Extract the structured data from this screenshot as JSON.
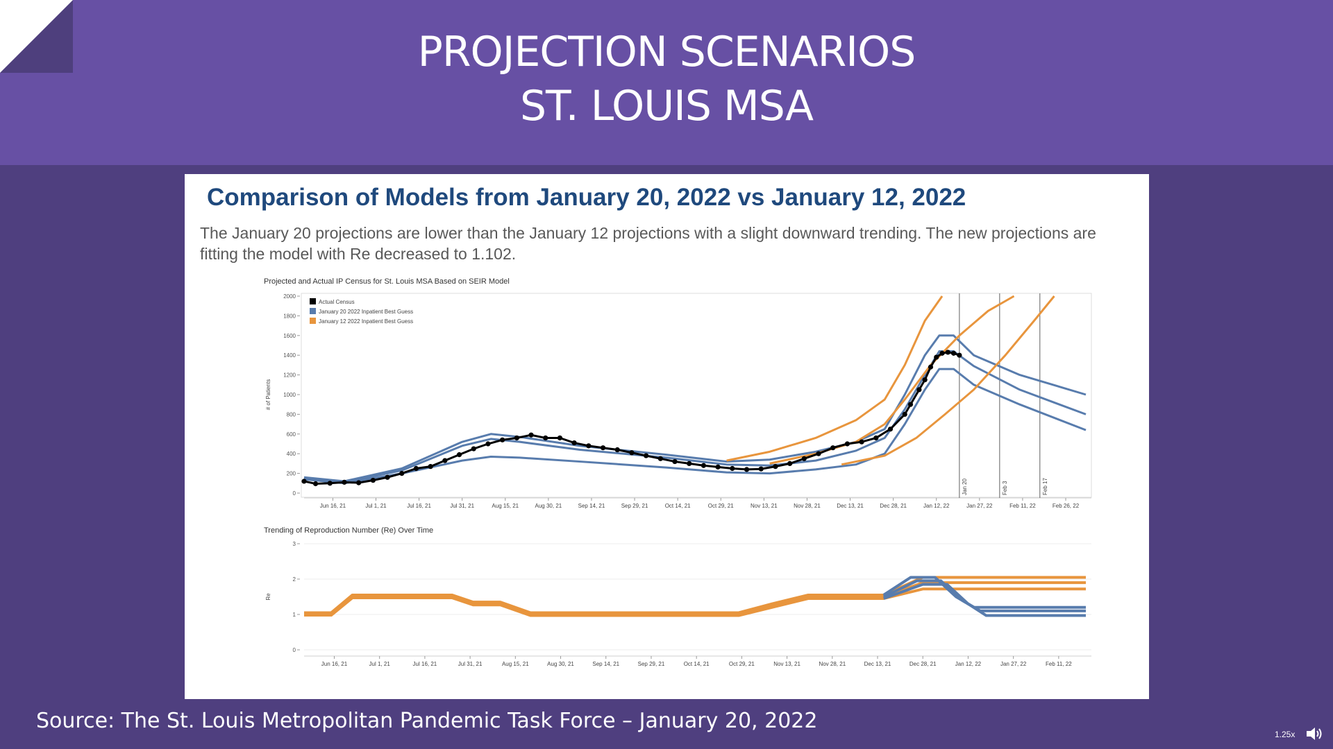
{
  "slide": {
    "title_line1": "PROJECTION SCENARIOS",
    "title_line2": "ST. LOUIS MSA",
    "heading": "Comparison of Models from January 20, 2022 vs January 12, 2022",
    "description": "The January 20 projections are lower than the January 12 projections with a slight downward trending. The new projections are fitting the model with Re decreased to 1.102.",
    "source": "Source: The St. Louis Metropolitan Pandemic Task Force – January 20, 2022",
    "colors": {
      "header": "#6750a4",
      "background": "#4f3f7f",
      "heading": "#1f497d"
    }
  },
  "player": {
    "speed": "1.25x",
    "speaker_icon": "speaker-icon"
  },
  "chart_data": [
    {
      "type": "line",
      "title": "Projected and Actual IP Census for St. Louis MSA Based on SEIR Model",
      "ylabel": "# of Patients",
      "xlabel": "",
      "x_ticks": [
        "Jun 16, 21",
        "Jul 1, 21",
        "Jul 16, 21",
        "Jul 31, 21",
        "Aug 15, 21",
        "Aug 30, 21",
        "Sep 14, 21",
        "Sep 29, 21",
        "Oct 14, 21",
        "Oct 29, 21",
        "Nov 13, 21",
        "Nov 28, 21",
        "Dec 13, 21",
        "Dec 28, 21",
        "Jan 12, 22",
        "Jan 27, 22",
        "Feb 11, 22",
        "Feb 26, 22"
      ],
      "x_range": [
        "2021-06-06",
        "2022-03-05"
      ],
      "y_ticks": [
        0,
        200,
        400,
        600,
        800,
        1000,
        1200,
        1400,
        1600,
        1800,
        2000
      ],
      "ylim": [
        0,
        2000
      ],
      "grid": false,
      "legend_position": "top-left",
      "legend": [
        {
          "name": "Actual Census",
          "color": "#000000"
        },
        {
          "name": "January 20 2022 Inpatient Best Guess",
          "color": "#587cad"
        },
        {
          "name": "January 12 2022 Inpatient Best Guess",
          "color": "#e8953d"
        }
      ],
      "reference_lines": [
        {
          "label": "Jan 20",
          "x": "2022-01-20"
        },
        {
          "label": "Feb 3",
          "x": "2022-02-03"
        },
        {
          "label": "Feb 17",
          "x": "2022-02-17"
        }
      ],
      "series": [
        {
          "name": "Actual Census",
          "color": "#000000",
          "style": "dots",
          "x": [
            "2021-06-06",
            "2021-06-10",
            "2021-06-15",
            "2021-06-20",
            "2021-06-25",
            "2021-06-30",
            "2021-07-05",
            "2021-07-10",
            "2021-07-15",
            "2021-07-20",
            "2021-07-25",
            "2021-07-30",
            "2021-08-04",
            "2021-08-09",
            "2021-08-14",
            "2021-08-19",
            "2021-08-24",
            "2021-08-29",
            "2021-09-03",
            "2021-09-08",
            "2021-09-13",
            "2021-09-18",
            "2021-09-23",
            "2021-09-28",
            "2021-10-03",
            "2021-10-08",
            "2021-10-13",
            "2021-10-18",
            "2021-10-23",
            "2021-10-28",
            "2021-11-02",
            "2021-11-07",
            "2021-11-12",
            "2021-11-17",
            "2021-11-22",
            "2021-11-27",
            "2021-12-02",
            "2021-12-07",
            "2021-12-12",
            "2021-12-17",
            "2021-12-22",
            "2021-12-27",
            "2022-01-01",
            "2022-01-03",
            "2022-01-06",
            "2022-01-08",
            "2022-01-10",
            "2022-01-12",
            "2022-01-14",
            "2022-01-16",
            "2022-01-18",
            "2022-01-20"
          ],
          "values": [
            120,
            95,
            100,
            110,
            105,
            130,
            160,
            200,
            250,
            270,
            330,
            390,
            450,
            500,
            540,
            560,
            590,
            560,
            560,
            510,
            480,
            460,
            440,
            410,
            380,
            350,
            320,
            300,
            280,
            265,
            250,
            240,
            245,
            270,
            300,
            350,
            400,
            460,
            500,
            520,
            560,
            650,
            800,
            900,
            1050,
            1150,
            1280,
            1380,
            1420,
            1430,
            1420,
            1400
          ]
        },
        {
          "name": "January 20 2022 Inpatient Best Guess",
          "color": "#587cad",
          "band": "upper",
          "x": [
            "2021-06-06",
            "2021-06-20",
            "2021-07-10",
            "2021-07-31",
            "2021-08-10",
            "2021-08-20",
            "2021-09-10",
            "2021-10-10",
            "2021-10-31",
            "2021-11-15",
            "2021-12-01",
            "2021-12-15",
            "2021-12-25",
            "2022-01-01",
            "2022-01-08",
            "2022-01-13",
            "2022-01-18",
            "2022-01-25",
            "2022-02-10",
            "2022-03-05"
          ],
          "values": [
            160,
            120,
            250,
            520,
            600,
            570,
            480,
            390,
            320,
            340,
            420,
            520,
            650,
            1000,
            1400,
            1600,
            1600,
            1400,
            1200,
            1000
          ]
        },
        {
          "name": "January 20 2022 Inpatient Best Guess",
          "color": "#587cad",
          "band": "middle",
          "x": [
            "2021-06-06",
            "2021-06-20",
            "2021-07-10",
            "2021-07-31",
            "2021-08-10",
            "2021-08-20",
            "2021-09-10",
            "2021-10-10",
            "2021-10-31",
            "2021-11-15",
            "2021-12-01",
            "2021-12-15",
            "2021-12-25",
            "2022-01-01",
            "2022-01-08",
            "2022-01-13",
            "2022-01-18",
            "2022-01-25",
            "2022-02-10",
            "2022-03-05"
          ],
          "values": [
            150,
            110,
            230,
            480,
            550,
            520,
            440,
            360,
            290,
            280,
            330,
            430,
            560,
            850,
            1200,
            1440,
            1440,
            1290,
            1050,
            800
          ]
        },
        {
          "name": "January 20 2022 Inpatient Best Guess",
          "color": "#587cad",
          "band": "lower",
          "x": [
            "2021-06-06",
            "2021-06-20",
            "2021-07-10",
            "2021-07-31",
            "2021-08-10",
            "2021-08-20",
            "2021-09-10",
            "2021-10-10",
            "2021-10-31",
            "2021-11-15",
            "2021-12-01",
            "2021-12-15",
            "2021-12-25",
            "2022-01-01",
            "2022-01-08",
            "2022-01-13",
            "2022-01-18",
            "2022-01-25",
            "2022-02-10",
            "2022-03-05"
          ],
          "values": [
            140,
            100,
            200,
            330,
            370,
            360,
            320,
            260,
            210,
            200,
            240,
            290,
            400,
            700,
            1050,
            1260,
            1260,
            1100,
            900,
            640
          ]
        },
        {
          "name": "January 12 2022 Inpatient Best Guess",
          "color": "#e8953d",
          "band": "upper",
          "x": [
            "2021-10-31",
            "2021-11-15",
            "2021-12-01",
            "2021-12-15",
            "2021-12-25",
            "2022-01-01",
            "2022-01-08",
            "2022-01-14"
          ],
          "values": [
            330,
            420,
            560,
            740,
            950,
            1300,
            1750,
            2000
          ]
        },
        {
          "name": "January 12 2022 Inpatient Best Guess",
          "color": "#e8953d",
          "band": "middle",
          "x": [
            "2021-11-15",
            "2021-12-01",
            "2021-12-15",
            "2021-12-25",
            "2022-01-01",
            "2022-01-10",
            "2022-01-20",
            "2022-01-30",
            "2022-02-08"
          ],
          "values": [
            300,
            400,
            520,
            700,
            950,
            1300,
            1600,
            1850,
            2000
          ]
        },
        {
          "name": "January 12 2022 Inpatient Best Guess",
          "color": "#e8953d",
          "band": "lower",
          "x": [
            "2021-12-10",
            "2021-12-25",
            "2022-01-05",
            "2022-01-15",
            "2022-01-25",
            "2022-02-05",
            "2022-02-15",
            "2022-02-22"
          ],
          "values": [
            290,
            380,
            560,
            800,
            1050,
            1400,
            1750,
            2000
          ]
        }
      ]
    },
    {
      "type": "line",
      "title": "Trending of Reproduction Number (Re) Over Time",
      "ylabel": "Re",
      "xlabel": "",
      "x_ticks": [
        "Jun 16, 21",
        "Jul 1, 21",
        "Jul 16, 21",
        "Jul 31, 21",
        "Aug 15, 21",
        "Aug 30, 21",
        "Sep 14, 21",
        "Sep 29, 21",
        "Oct 14, 21",
        "Oct 29, 21",
        "Nov 13, 21",
        "Nov 28, 21",
        "Dec 13, 21",
        "Dec 28, 21",
        "Jan 12, 22",
        "Jan 27, 22",
        "Feb 11, 22"
      ],
      "x_range": [
        "2021-06-06",
        "2022-02-20"
      ],
      "y_ticks": [
        0,
        1,
        2,
        3
      ],
      "ylim": [
        0,
        3
      ],
      "grid": true,
      "series": [
        {
          "name": "January 12 2022 Inpatient Best Guess",
          "color": "#e8953d",
          "x": [
            "2021-06-06",
            "2021-06-15",
            "2021-06-22",
            "2021-07-25",
            "2021-08-01",
            "2021-08-10",
            "2021-08-20",
            "2021-10-28",
            "2021-11-08",
            "2021-11-20",
            "2021-12-15",
            "2021-12-28",
            "2022-02-20"
          ],
          "values": [
            1.05,
            1.05,
            1.55,
            1.55,
            1.35,
            1.35,
            1.05,
            1.05,
            1.3,
            1.55,
            1.55,
            2.05,
            2.05
          ]
        },
        {
          "name": "January 12 2022 Inpatient Best Guess",
          "color": "#e8953d",
          "x": [
            "2021-06-06",
            "2021-06-15",
            "2021-06-22",
            "2021-07-25",
            "2021-08-01",
            "2021-08-10",
            "2021-08-20",
            "2021-10-28",
            "2021-11-08",
            "2021-11-20",
            "2021-12-15",
            "2021-12-28",
            "2022-02-20"
          ],
          "values": [
            1.0,
            1.0,
            1.5,
            1.5,
            1.3,
            1.3,
            1.0,
            1.0,
            1.25,
            1.5,
            1.5,
            1.9,
            1.9
          ]
        },
        {
          "name": "January 12 2022 Inpatient Best Guess",
          "color": "#e8953d",
          "x": [
            "2021-06-06",
            "2021-06-15",
            "2021-06-22",
            "2021-07-25",
            "2021-08-01",
            "2021-08-10",
            "2021-08-20",
            "2021-10-28",
            "2021-11-08",
            "2021-11-20",
            "2021-12-15",
            "2021-12-28",
            "2022-02-20"
          ],
          "values": [
            0.98,
            0.98,
            1.47,
            1.47,
            1.27,
            1.27,
            0.97,
            0.97,
            1.2,
            1.45,
            1.45,
            1.72,
            1.72
          ]
        },
        {
          "name": "January 20 2022 Inpatient Best Guess",
          "color": "#587cad",
          "x": [
            "2021-12-15",
            "2021-12-24",
            "2022-01-01",
            "2022-01-08",
            "2022-01-14",
            "2022-02-20"
          ],
          "values": [
            1.55,
            2.05,
            2.05,
            1.5,
            1.2,
            1.2
          ]
        },
        {
          "name": "January 20 2022 Inpatient Best Guess",
          "color": "#587cad",
          "x": [
            "2021-12-15",
            "2021-12-26",
            "2022-01-03",
            "2022-01-10",
            "2022-01-16",
            "2022-02-20"
          ],
          "values": [
            1.5,
            1.95,
            1.95,
            1.4,
            1.1,
            1.1
          ]
        },
        {
          "name": "January 20 2022 Inpatient Best Guess",
          "color": "#587cad",
          "x": [
            "2021-12-15",
            "2021-12-28",
            "2022-01-05",
            "2022-01-12",
            "2022-01-18",
            "2022-02-20"
          ],
          "values": [
            1.45,
            1.85,
            1.85,
            1.3,
            0.97,
            0.97
          ]
        }
      ]
    }
  ]
}
